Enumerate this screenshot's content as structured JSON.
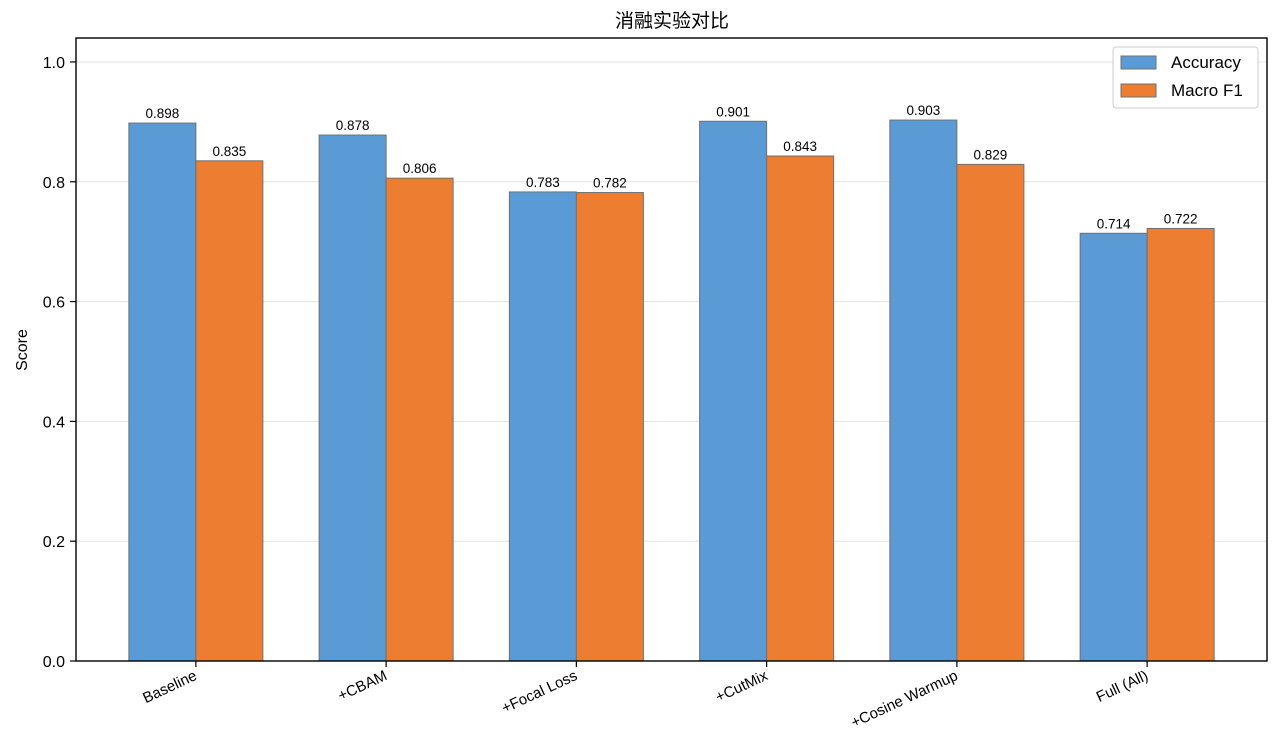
{
  "chart_data": {
    "type": "bar",
    "title": "消融实验对比",
    "xlabel": "",
    "ylabel": "Score",
    "ylim": [
      0,
      1.04
    ],
    "yticks": [
      "0.0",
      "0.2",
      "0.4",
      "0.6",
      "0.8",
      "1.0"
    ],
    "ytick_values": [
      0.0,
      0.2,
      0.4,
      0.6,
      0.8,
      1.0
    ],
    "grid": "horizontal",
    "legend_position": "top-right",
    "categories": [
      "Baseline",
      "+CBAM",
      "+Focal Loss",
      "+CutMix",
      "+Cosine Warmup",
      "Full (All)"
    ],
    "series": [
      {
        "name": "Accuracy",
        "color": "#5b9bd5",
        "values": [
          0.898,
          0.878,
          0.783,
          0.901,
          0.903,
          0.714
        ],
        "labels": [
          "0.898",
          "0.878",
          "0.783",
          "0.901",
          "0.903",
          "0.714"
        ]
      },
      {
        "name": "Macro F1",
        "color": "#ed7d31",
        "values": [
          0.835,
          0.806,
          0.782,
          0.843,
          0.829,
          0.722
        ],
        "labels": [
          "0.835",
          "0.806",
          "0.782",
          "0.843",
          "0.829",
          "0.722"
        ]
      }
    ]
  }
}
